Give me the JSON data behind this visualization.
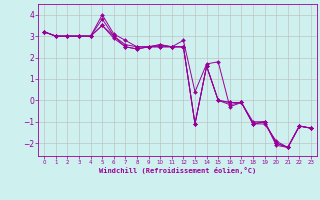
{
  "xlabel": "Windchill (Refroidissement éolien,°C)",
  "bg_color": "#cef0ee",
  "line_color": "#990099",
  "grid_color": "#bbbbbb",
  "x_ticks": [
    0,
    1,
    2,
    3,
    4,
    5,
    6,
    7,
    8,
    9,
    10,
    11,
    12,
    13,
    14,
    15,
    16,
    17,
    18,
    19,
    20,
    21,
    22,
    23
  ],
  "y_ticks": [
    -2,
    -1,
    0,
    1,
    2,
    3,
    4
  ],
  "xlim": [
    -0.5,
    23.5
  ],
  "ylim": [
    -2.6,
    4.5
  ],
  "series": [
    [
      3.2,
      3.0,
      3.0,
      3.0,
      3.0,
      4.0,
      3.1,
      2.8,
      2.5,
      2.5,
      2.6,
      2.5,
      2.8,
      0.4,
      1.7,
      1.8,
      -0.3,
      -0.1,
      -1.1,
      -1.1,
      -1.9,
      -2.2,
      -1.2,
      -1.3
    ],
    [
      3.2,
      3.0,
      3.0,
      3.0,
      3.0,
      3.8,
      3.0,
      2.6,
      2.5,
      2.5,
      2.6,
      2.5,
      2.5,
      -1.1,
      1.6,
      0.0,
      -0.1,
      -0.1,
      -1.1,
      -1.0,
      -2.1,
      -2.2,
      -1.2,
      -1.3
    ],
    [
      3.2,
      3.0,
      3.0,
      3.0,
      3.0,
      3.5,
      3.0,
      2.5,
      2.4,
      2.5,
      2.5,
      2.5,
      2.5,
      -1.1,
      1.6,
      0.0,
      -0.1,
      -0.1,
      -1.0,
      -1.0,
      -2.0,
      -2.2,
      -1.2,
      -1.3
    ],
    [
      3.2,
      3.0,
      3.0,
      3.0,
      3.0,
      3.5,
      2.9,
      2.5,
      2.4,
      2.5,
      2.5,
      2.5,
      2.5,
      -1.1,
      1.6,
      0.0,
      -0.2,
      -0.1,
      -1.1,
      -1.0,
      -2.0,
      -2.2,
      -1.2,
      -1.3
    ]
  ]
}
